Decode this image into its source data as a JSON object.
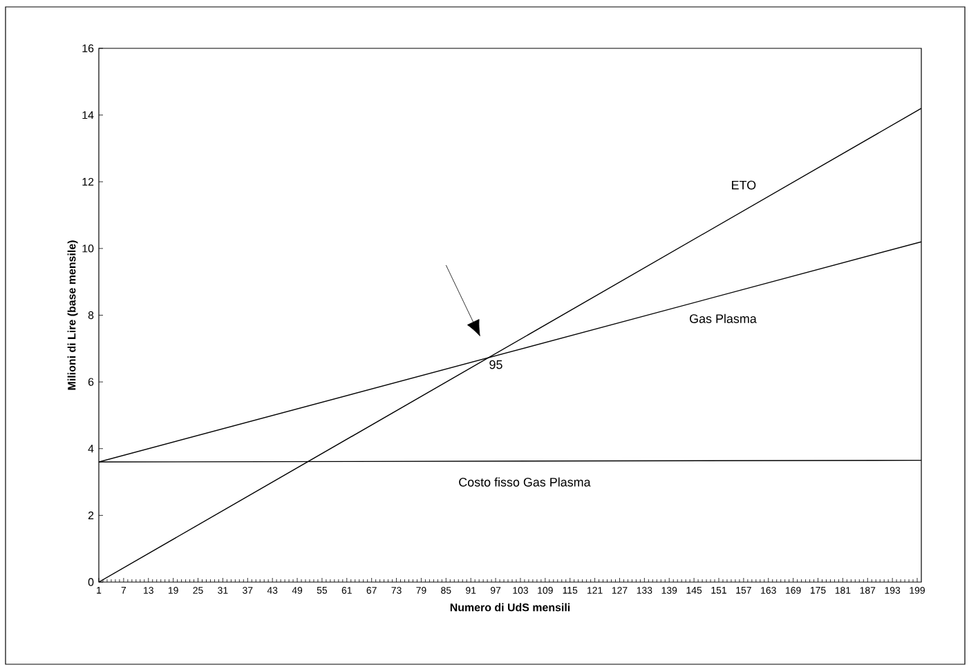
{
  "chart_data": {
    "type": "line",
    "xlabel": "Numero di UdS mensili",
    "ylabel": "Milioni di Lire (base mensile)",
    "x": [
      1,
      200
    ],
    "series": [
      {
        "name": "ETO",
        "color": "#000000",
        "values": [
          0,
          14.2
        ]
      },
      {
        "name": "Gas Plasma",
        "color": "#000000",
        "values": [
          3.6,
          10.2
        ]
      },
      {
        "name": "Costo fisso Gas Plasma",
        "color": "#000000",
        "values": [
          3.6,
          3.65
        ]
      }
    ],
    "annotations": [
      {
        "text": "95",
        "x": 95,
        "y": 6.7
      }
    ],
    "xlim": [
      1,
      200
    ],
    "xticks": [
      1,
      7,
      13,
      19,
      25,
      31,
      37,
      43,
      49,
      55,
      61,
      67,
      73,
      79,
      85,
      91,
      97,
      103,
      109,
      115,
      121,
      127,
      133,
      139,
      145,
      151,
      157,
      163,
      169,
      175,
      181,
      187,
      193,
      199
    ],
    "ylim": [
      0,
      16
    ],
    "yticks": [
      0,
      2,
      4,
      6,
      8,
      10,
      12,
      14,
      16
    ],
    "grid": false,
    "legend": false,
    "marker": "none",
    "line_style": "solid"
  }
}
